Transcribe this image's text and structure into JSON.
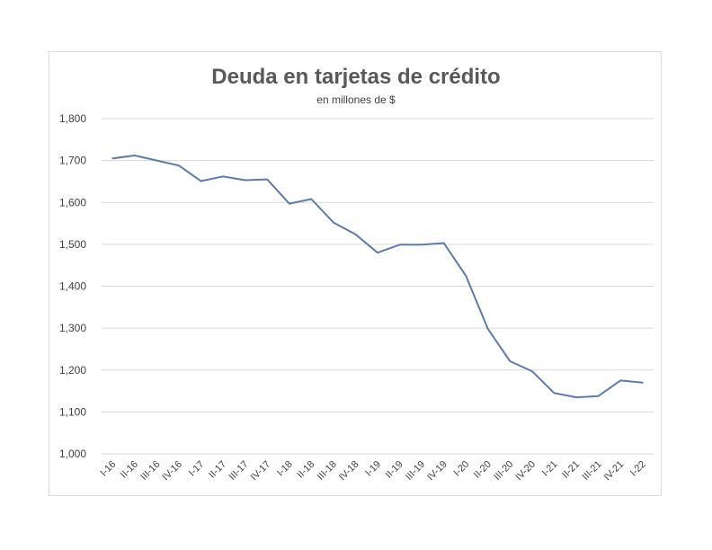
{
  "chart_data": {
    "type": "line",
    "title": "Deuda en tarjetas de crédito",
    "subtitle": "en millones  de $",
    "xlabel": "",
    "ylabel": "",
    "ylim": [
      1000,
      1800
    ],
    "yticks": [
      "1,000",
      "1,100",
      "1,200",
      "1,300",
      "1,400",
      "1,500",
      "1,600",
      "1,700",
      "1,800"
    ],
    "grid": true,
    "categories": [
      "I-16",
      "II-16",
      "III-16",
      "IV-16",
      "I-17",
      "II-17",
      "III-17",
      "IV-17",
      "I-18",
      "II-18",
      "III-18",
      "IV-18",
      "I-19",
      "II-19",
      "III-19",
      "IV-19",
      "I-20",
      "II-20",
      "III-20",
      "IV-20",
      "I-21",
      "II-21",
      "III-21",
      "IV-21",
      "I-22"
    ],
    "series": [
      {
        "color": "#5b7bb1",
        "values": [
          1705,
          1712,
          1700,
          1688,
          1651,
          1662,
          1653,
          1655,
          1597,
          1608,
          1552,
          1524,
          1480,
          1499,
          1499,
          1503,
          1425,
          1298,
          1221,
          1197,
          1145,
          1135,
          1138,
          1175,
          1170
        ]
      }
    ]
  }
}
